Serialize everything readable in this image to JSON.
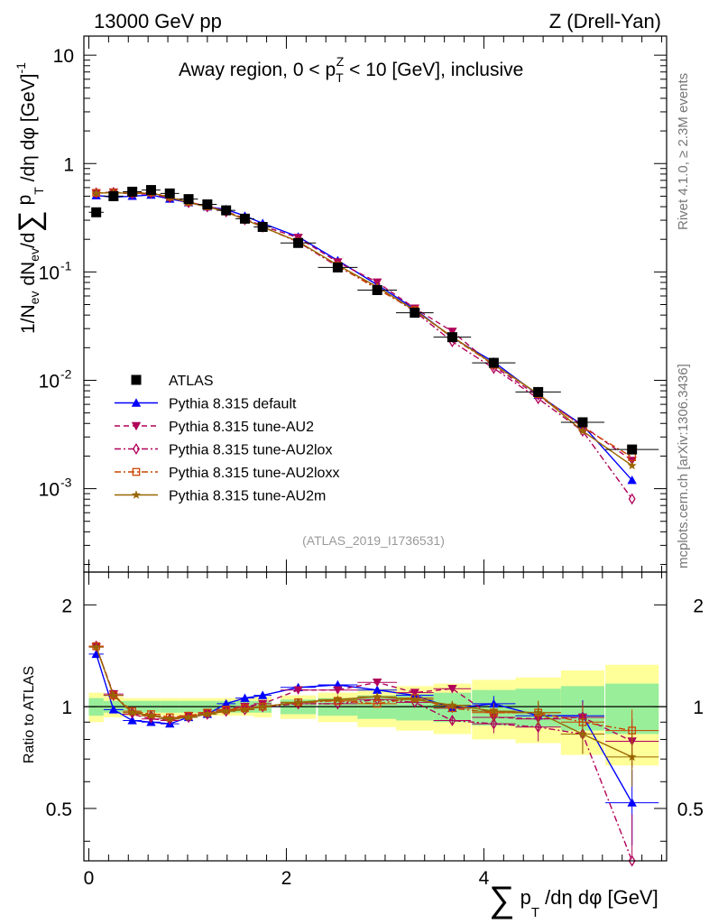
{
  "header": {
    "left": "13000 GeV pp",
    "right": "Z (Drell-Yan)"
  },
  "side_labels": {
    "rivet": "Rivet 4.1.0, ≥ 2.3M events",
    "mcplots": "mcplots.cern.ch [arXiv:1306.3436]"
  },
  "watermark": "(ATLAS_2019_I1736531)",
  "top_panel": {
    "title_main": "Away region, 0 < p",
    "title_sup": "Z",
    "title_sub": "T",
    "title_rest": " < 10 [GeV], inclusive",
    "ylabel": "1/N_ev dN_ev/dΣ p_T/dη dφ [GeV]^-1",
    "ylabel_a": "1/N",
    "ylabel_b": "ev",
    "ylabel_c": " dN",
    "ylabel_d": "ev",
    "ylabel_e": "/d",
    "ylabel_sigma": "∑",
    "ylabel_f": " p",
    "ylabel_g": "T",
    "ylabel_h": " /dη dφ  [GeV]",
    "ylabel_i": "-1",
    "yticks": [
      {
        "label": "10",
        "exp": "-3",
        "value": 0.001
      },
      {
        "label": "10",
        "exp": "-2",
        "value": 0.01
      },
      {
        "label": "10",
        "exp": "-1",
        "value": 0.1
      },
      {
        "label": "1",
        "exp": "",
        "value": 1
      },
      {
        "label": "10",
        "exp": "",
        "value": 10
      }
    ]
  },
  "ratio_panel": {
    "ylabel": "Ratio to ATLAS",
    "yticks": [
      {
        "label": "0.5",
        "value": 0.5
      },
      {
        "label": "1",
        "value": 1
      },
      {
        "label": "2",
        "value": 2
      }
    ]
  },
  "xaxis": {
    "label_sigma": "∑",
    "label_a": " p",
    "label_b": "T",
    "label_c": " /dη dφ [GeV]",
    "ticks": [
      {
        "label": "0",
        "value": 0
      },
      {
        "label": "2",
        "value": 2
      },
      {
        "label": "4",
        "value": 4
      }
    ]
  },
  "legend": [
    {
      "name": "ATLAS",
      "color": "#000000",
      "marker": "square",
      "style": "none"
    },
    {
      "name": "Pythia 8.315 default",
      "color": "#0000ff",
      "marker": "triangle-up",
      "style": "solid"
    },
    {
      "name": "Pythia 8.315 tune-AU2",
      "color": "#b0005a",
      "marker": "triangle-down",
      "style": "dashed"
    },
    {
      "name": "Pythia 8.315 tune-AU2lox",
      "color": "#b0005a",
      "marker": "diamond-open",
      "style": "dashdot"
    },
    {
      "name": "Pythia 8.315 tune-AU2loxx",
      "color": "#cc4400",
      "marker": "square-open",
      "style": "dashdot"
    },
    {
      "name": "Pythia 8.315 tune-AU2m",
      "color": "#996600",
      "marker": "star",
      "style": "solid"
    }
  ],
  "chart_data": {
    "type": "line",
    "title": "Away region, 0 < pT^Z < 10 [GeV], inclusive",
    "xlabel": "Σ pT/dη dφ [GeV]",
    "ylabel": "1/N_ev dN_ev/dΣ pT/dη dφ [GeV]^-1",
    "xlim": [
      -0.05,
      5.85
    ],
    "ylim": [
      0.00017,
      15
    ],
    "yscale": "log",
    "ratio_ylabel": "Ratio to ATLAS",
    "ratio_ylim": [
      0.35,
      2.5
    ],
    "x": [
      0.075,
      0.25,
      0.44,
      0.63,
      0.82,
      1.01,
      1.2,
      1.39,
      1.58,
      1.76,
      2.12,
      2.52,
      2.92,
      3.3,
      3.68,
      4.1,
      4.55,
      5.0,
      5.5
    ],
    "xerr": [
      0.075,
      0.1,
      0.095,
      0.095,
      0.095,
      0.095,
      0.095,
      0.095,
      0.095,
      0.09,
      0.18,
      0.2,
      0.2,
      0.19,
      0.19,
      0.22,
      0.23,
      0.22,
      0.27
    ],
    "data": {
      "name": "ATLAS",
      "values": [
        0.355,
        0.5,
        0.55,
        0.57,
        0.53,
        0.47,
        0.42,
        0.37,
        0.31,
        0.26,
        0.185,
        0.11,
        0.068,
        0.042,
        0.025,
        0.0145,
        0.0078,
        0.0041,
        0.0023
      ]
    },
    "ratio_band_green": [
      0.06,
      0.04,
      0.04,
      0.04,
      0.04,
      0.04,
      0.04,
      0.04,
      0.04,
      0.04,
      0.05,
      0.06,
      0.08,
      0.09,
      0.1,
      0.12,
      0.13,
      0.15,
      0.17
    ],
    "ratio_band_yellow": [
      0.1,
      0.07,
      0.06,
      0.06,
      0.06,
      0.06,
      0.06,
      0.06,
      0.06,
      0.07,
      0.08,
      0.1,
      0.13,
      0.15,
      0.17,
      0.2,
      0.22,
      0.28,
      0.33
    ],
    "series": [
      {
        "name": "Pythia 8.315 default",
        "ratio": [
          1.43,
          0.98,
          0.91,
          0.9,
          0.89,
          0.93,
          0.95,
          1.02,
          1.06,
          1.08,
          1.14,
          1.16,
          1.12,
          1.08,
          0.99,
          1.02,
          0.94,
          0.94,
          0.52
        ]
      },
      {
        "name": "Pythia 8.315 tune-AU2",
        "ratio": [
          1.5,
          1.09,
          0.95,
          0.92,
          0.91,
          0.94,
          0.96,
          0.98,
          1.0,
          1.02,
          1.12,
          1.12,
          1.18,
          1.1,
          1.13,
          0.93,
          0.92,
          0.93,
          0.79
        ]
      },
      {
        "name": "Pythia 8.315 tune-AU2lox",
        "ratio": [
          1.51,
          1.08,
          0.96,
          0.94,
          0.92,
          0.93,
          0.95,
          0.97,
          0.98,
          1.0,
          1.02,
          1.02,
          1.05,
          1.03,
          0.91,
          0.89,
          0.87,
          0.83,
          0.35
        ]
      },
      {
        "name": "Pythia 8.315 tune-AU2loxx",
        "ratio": [
          1.51,
          1.08,
          0.97,
          0.95,
          0.93,
          0.94,
          0.96,
          0.98,
          0.99,
          1.0,
          1.03,
          1.04,
          1.02,
          1.06,
          0.99,
          0.96,
          0.96,
          0.9,
          0.85
        ]
      },
      {
        "name": "Pythia 8.315 tune-AU2m",
        "ratio": [
          1.5,
          1.08,
          0.96,
          0.94,
          0.92,
          0.93,
          0.95,
          0.97,
          0.98,
          1.0,
          1.03,
          1.05,
          1.07,
          1.05,
          1.01,
          0.97,
          0.96,
          0.83,
          0.71
        ]
      }
    ]
  }
}
